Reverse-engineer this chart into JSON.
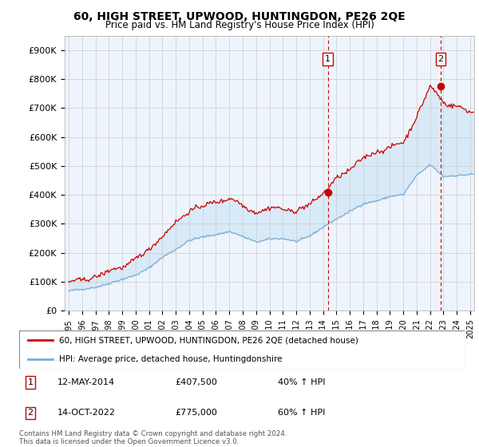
{
  "title": "60, HIGH STREET, UPWOOD, HUNTINGDON, PE26 2QE",
  "subtitle": "Price paid vs. HM Land Registry's House Price Index (HPI)",
  "footer": "Contains HM Land Registry data © Crown copyright and database right 2024.\nThis data is licensed under the Open Government Licence v3.0.",
  "legend_line1": "60, HIGH STREET, UPWOOD, HUNTINGDON, PE26 2QE (detached house)",
  "legend_line2": "HPI: Average price, detached house, Huntingdonshire",
  "annotation1_date": "12-MAY-2014",
  "annotation1_price": "£407,500",
  "annotation1_hpi": "40% ↑ HPI",
  "annotation1_year": 2014.37,
  "annotation1_value": 407500,
  "annotation2_date": "14-OCT-2022",
  "annotation2_price": "£775,000",
  "annotation2_hpi": "60% ↑ HPI",
  "annotation2_year": 2022.79,
  "annotation2_value": 775000,
  "ylim": [
    0,
    950000
  ],
  "yticks": [
    0,
    100000,
    200000,
    300000,
    400000,
    500000,
    600000,
    700000,
    800000,
    900000
  ],
  "ytick_labels": [
    "£0",
    "£100K",
    "£200K",
    "£300K",
    "£400K",
    "£500K",
    "£600K",
    "£700K",
    "£800K",
    "£900K"
  ],
  "xlim_start": 1994.7,
  "xlim_end": 2025.3,
  "red_color": "#cc0000",
  "blue_color": "#7aadd4",
  "fill_color": "#d8eaf8",
  "grid_color": "#cccccc",
  "bg_color": "#eef4fb"
}
